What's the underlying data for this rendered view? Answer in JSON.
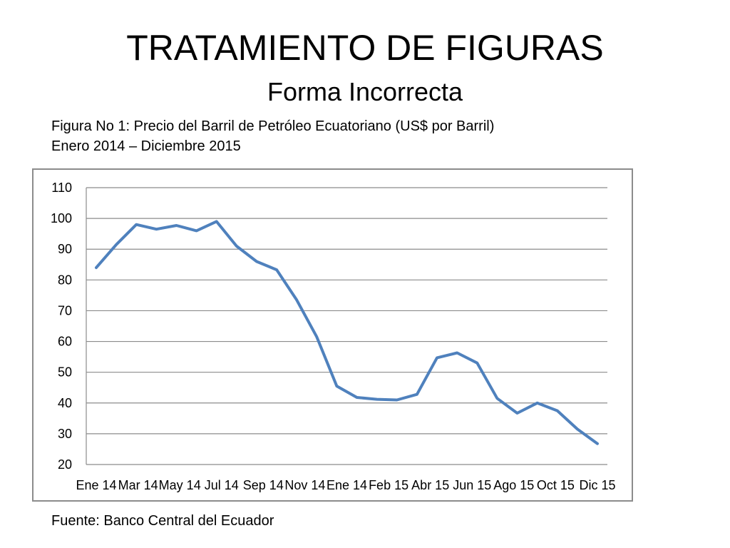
{
  "slide": {
    "title": "TRATAMIENTO DE FIGURAS",
    "subtitle": "Forma Incorrecta",
    "caption_line1": "Figura No 1: Precio del Barril de Petróleo Ecuatoriano  (US$ por Barril)",
    "caption_line2": "Enero 2014 – Diciembre 2015",
    "source": "Fuente: Banco Central del Ecuador"
  },
  "colors": {
    "line": "#4f81bd",
    "grid": "#8c8c8c",
    "frame": "#8c8c8c"
  },
  "chart_data": {
    "type": "line",
    "title": "",
    "xlabel": "",
    "ylabel": "",
    "ylim": [
      20,
      110
    ],
    "yticks": [
      20,
      30,
      40,
      50,
      60,
      70,
      80,
      90,
      100,
      110
    ],
    "grid": true,
    "legend": "none",
    "x_tick_labels": [
      "Ene 14",
      "Mar 14",
      "May 14",
      "Jul 14",
      "Sep 14",
      "Nov 14",
      "Ene 14",
      "Feb 15",
      "Abr 15",
      "Jun 15",
      "Ago 15",
      "Oct 15",
      "Dic 15"
    ],
    "series": [
      {
        "values": [
          84,
          91.5,
          98,
          96.5,
          97.7,
          96,
          99,
          91,
          86,
          83.3,
          73.5,
          61.5,
          45.5,
          41.8,
          41.2,
          41,
          42.8,
          54.7,
          56.3,
          53,
          41.5,
          36.7,
          40,
          37.5,
          31.5,
          26.8
        ]
      }
    ]
  }
}
